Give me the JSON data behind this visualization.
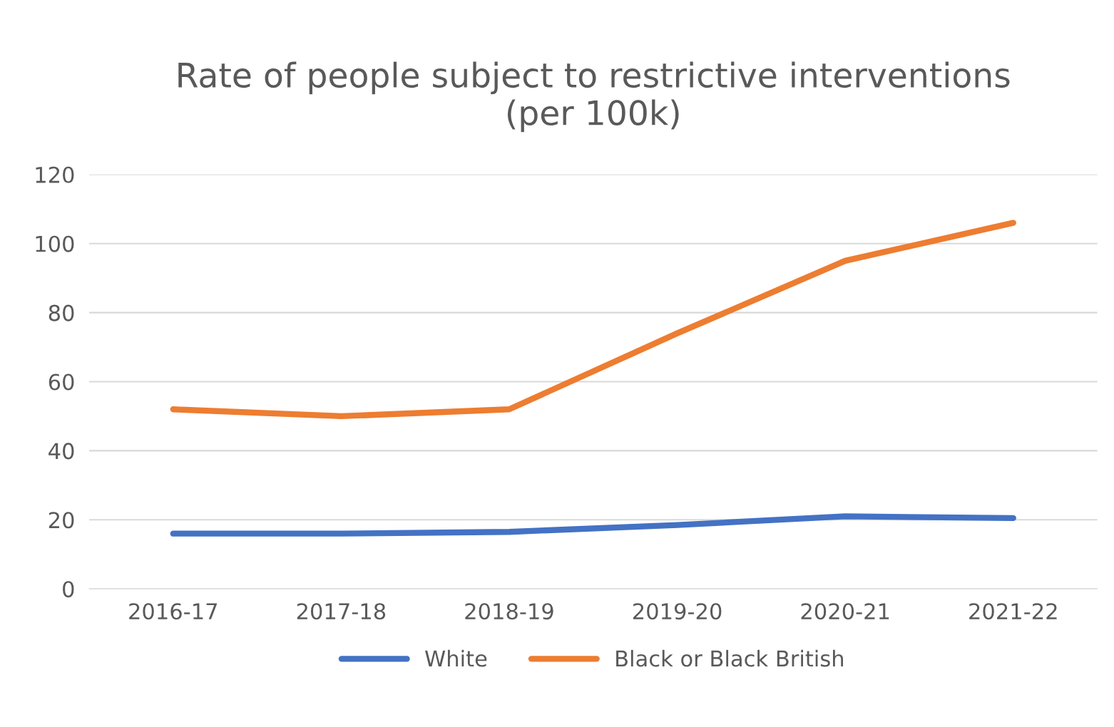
{
  "chart_data": {
    "type": "line",
    "title": "Rate of people subject to restrictive interventions\n(per 100k)",
    "categories": [
      "2016-17",
      "2017-18",
      "2018-19",
      "2019-20",
      "2020-21",
      "2021-22"
    ],
    "series": [
      {
        "name": "White",
        "color": "#4472c4",
        "values": [
          16,
          16,
          16.5,
          18.5,
          21,
          20.5
        ]
      },
      {
        "name": "Black or Black British",
        "color": "#ed7d31",
        "values": [
          52,
          50,
          52,
          74,
          95,
          106
        ]
      }
    ],
    "ylim": [
      0,
      120
    ],
    "yticks": [
      0,
      20,
      40,
      60,
      80,
      100,
      120
    ],
    "grid": "y",
    "legend": "bottom",
    "marker": "none",
    "line_style": "solid"
  }
}
